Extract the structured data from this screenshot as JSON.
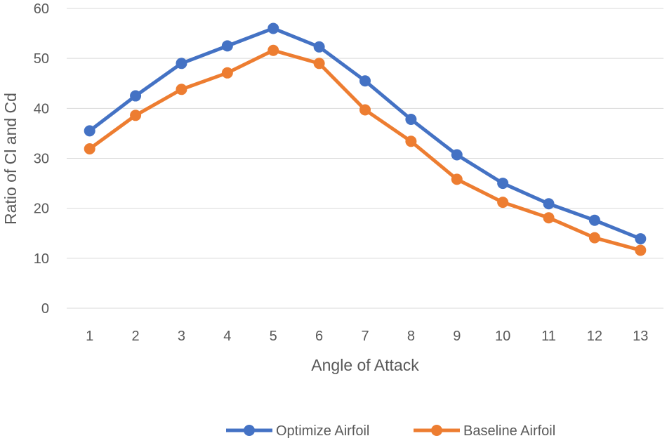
{
  "chart_data": {
    "type": "line",
    "title": "",
    "xlabel": "Angle of Attack",
    "ylabel": "Ratio of Cl and Cd",
    "categories": [
      "1",
      "2",
      "3",
      "4",
      "5",
      "6",
      "7",
      "8",
      "9",
      "10",
      "11",
      "12",
      "13"
    ],
    "yticks": [
      "0",
      "10",
      "20",
      "30",
      "40",
      "50",
      "60"
    ],
    "ylim": [
      0,
      60
    ],
    "grid": true,
    "legend_position": "bottom",
    "series": [
      {
        "name": "Optimize Airfoil",
        "color": "#4472c4",
        "values": [
          35.5,
          42.5,
          49,
          52.5,
          56,
          52.3,
          45.5,
          37.8,
          30.7,
          25,
          20.9,
          17.6,
          13.9
        ]
      },
      {
        "name": "Baseline Airfoil",
        "color": "#ed7d31",
        "values": [
          31.9,
          38.6,
          43.8,
          47.1,
          51.6,
          49,
          39.7,
          33.4,
          25.8,
          21.2,
          18.1,
          14.1,
          11.6
        ]
      }
    ]
  }
}
